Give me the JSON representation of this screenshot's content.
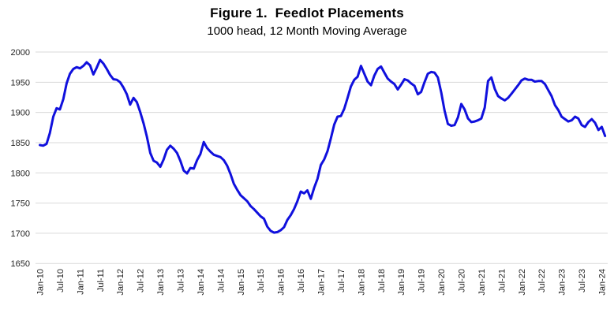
{
  "header": {
    "title": "Figure 1.  Feedlot Placements",
    "subtitle": "1000 head, 12 Month Moving Average"
  },
  "colors": {
    "line": "#1010dd",
    "gridline": "#d9d9d9",
    "tick_text": "#1f1f1f",
    "background": "#ffffff"
  },
  "chart_data": {
    "type": "line",
    "title": "Figure 1.  Feedlot Placements",
    "subtitle": "1000 head, 12 Month Moving Average",
    "ylabel": "",
    "xlabel": "",
    "ylim": [
      1650,
      2000
    ],
    "y_tick_step": 50,
    "y_tick_labels": [
      "2000",
      "1950",
      "1900",
      "1850",
      "1800",
      "1750",
      "1700",
      "1650"
    ],
    "grid": "horizontal",
    "legend": "none",
    "x_frequency": "monthly",
    "x_start": "Jan-2010",
    "x_end": "Feb-2024",
    "x_tick_interval_months": 6,
    "x_tick_labels": [
      "Jan-10",
      "Jul-10",
      "Jan-11",
      "Jul-11",
      "Jan-12",
      "Jul-12",
      "Jan-13",
      "Jul-13",
      "Jan-14",
      "Jul-14",
      "Jan-15",
      "Jul-15",
      "Jan-16",
      "Jul-16",
      "Jan-17",
      "Jul-17",
      "Jan-18",
      "Jul-18",
      "Jan-19",
      "Jul-19",
      "Jan-20",
      "Jul-20",
      "Jan-21",
      "Jul-21",
      "Jan-22",
      "Jul-22",
      "Jan-23",
      "Jul-23",
      "Jan-24"
    ],
    "series": [
      {
        "name": "Feedlot Placements, 1000 head, 12 Month Moving Average",
        "color": "#1010dd",
        "values": [
          1846,
          1845,
          1848,
          1866,
          1893,
          1907,
          1905,
          1922,
          1948,
          1964,
          1972,
          1975,
          1973,
          1977,
          1983,
          1978,
          1963,
          1974,
          1987,
          1981,
          1972,
          1962,
          1955,
          1954,
          1950,
          1941,
          1930,
          1913,
          1924,
          1917,
          1901,
          1882,
          1860,
          1833,
          1820,
          1817,
          1810,
          1822,
          1838,
          1845,
          1840,
          1833,
          1820,
          1804,
          1799,
          1808,
          1807,
          1821,
          1831,
          1851,
          1841,
          1835,
          1830,
          1828,
          1826,
          1821,
          1812,
          1798,
          1782,
          1772,
          1763,
          1758,
          1753,
          1745,
          1740,
          1734,
          1728,
          1724,
          1711,
          1704,
          1701,
          1702,
          1705,
          1710,
          1722,
          1730,
          1740,
          1753,
          1769,
          1766,
          1771,
          1757,
          1775,
          1790,
          1813,
          1822,
          1836,
          1857,
          1880,
          1893,
          1894,
          1906,
          1924,
          1943,
          1954,
          1959,
          1977,
          1964,
          1951,
          1945,
          1961,
          1972,
          1976,
          1966,
          1956,
          1951,
          1947,
          1938,
          1946,
          1955,
          1953,
          1948,
          1944,
          1930,
          1934,
          1950,
          1964,
          1967,
          1966,
          1958,
          1933,
          1903,
          1881,
          1878,
          1879,
          1892,
          1914,
          1905,
          1890,
          1884,
          1885,
          1887,
          1890,
          1908,
          1952,
          1958,
          1939,
          1927,
          1923,
          1920,
          1924,
          1931,
          1938,
          1945,
          1953,
          1956,
          1954,
          1954,
          1951,
          1952,
          1952,
          1947,
          1937,
          1927,
          1912,
          1904,
          1893,
          1889,
          1885,
          1887,
          1893,
          1890,
          1879,
          1876,
          1884,
          1889,
          1883,
          1871,
          1876,
          1861
        ]
      }
    ]
  }
}
